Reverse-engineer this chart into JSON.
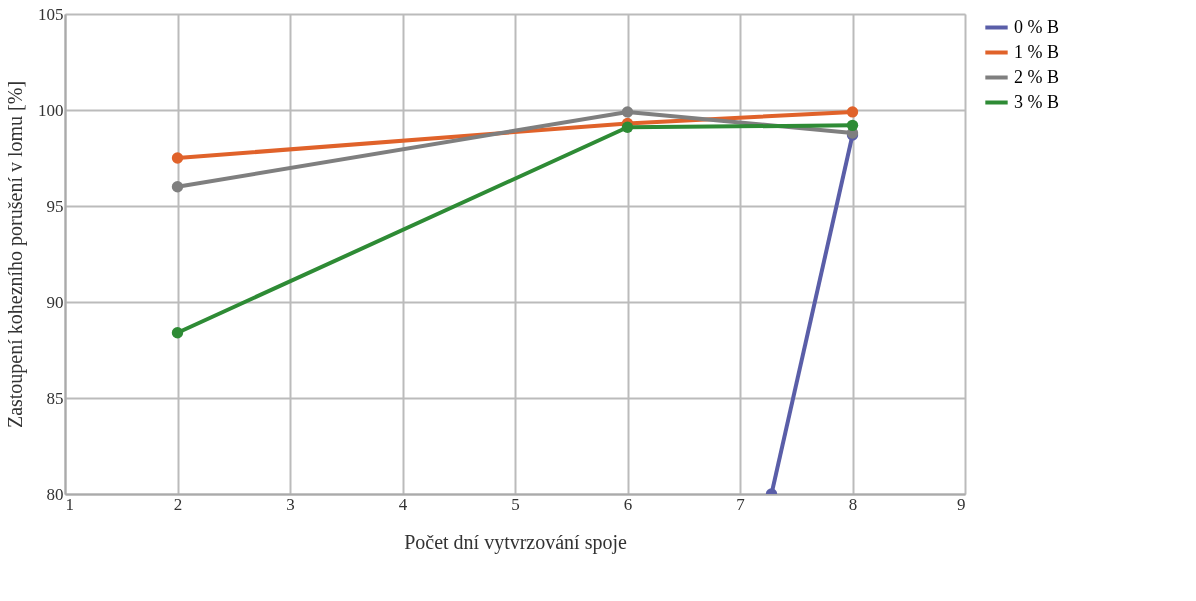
{
  "chart_data": {
    "type": "line",
    "xlabel": "Počet dní vytvrzování spoje",
    "ylabel": "Zastoupení kohezního porušení v lomu [%]",
    "x": [
      2,
      6,
      8
    ],
    "series": [
      {
        "name": "0 % B",
        "color": "#5a5ea8",
        "x": [
          7.28,
          8
        ],
        "values": [
          80,
          98.7
        ]
      },
      {
        "name": "1 % B",
        "color": "#e0622a",
        "values": [
          97.5,
          99.3,
          99.9
        ]
      },
      {
        "name": "2 % B",
        "color": "#7f7f7f",
        "values": [
          96.0,
          99.9,
          98.8
        ]
      },
      {
        "name": "3 % B",
        "color": "#2e8b35",
        "values": [
          88.4,
          99.1,
          99.2
        ]
      }
    ],
    "xlim": [
      1,
      9
    ],
    "xticks": [
      1,
      2,
      3,
      4,
      5,
      6,
      7,
      8,
      9
    ],
    "ylim": [
      80,
      105
    ],
    "yticks": [
      80,
      85,
      90,
      95,
      100,
      105
    ],
    "grid": true,
    "legend": "right",
    "marker": "circle",
    "line_style": "solid"
  }
}
